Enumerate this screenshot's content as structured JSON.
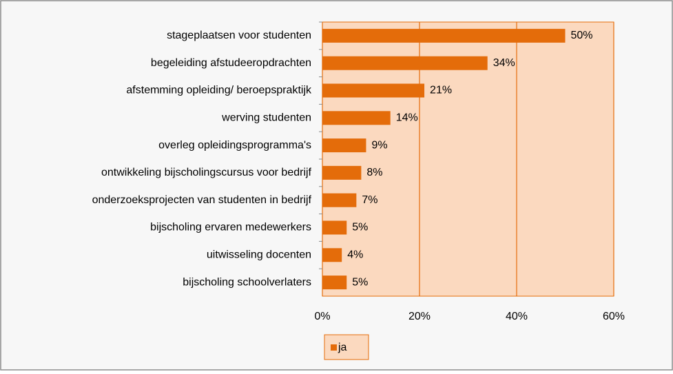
{
  "chart_data": {
    "type": "bar",
    "orientation": "horizontal",
    "categories": [
      "stageplaatsen voor studenten",
      "begeleiding afstudeeropdrachten",
      "afstemming opleiding/ beroepspraktijk",
      "werving studenten",
      "overleg opleidingsprogramma's",
      "ontwikkeling bijscholingscursus voor bedrijf",
      "onderzoeksprojecten van studenten in bedrijf",
      "bijscholing ervaren medewerkers",
      "uitwisseling docenten",
      "bijscholing schoolverlaters"
    ],
    "series": [
      {
        "name": "ja",
        "color": "#e46c0a",
        "values": [
          50,
          34,
          21,
          14,
          9,
          8,
          7,
          5,
          4,
          5
        ],
        "value_labels": [
          "50%",
          "34%",
          "21%",
          "14%",
          "9%",
          "8%",
          "7%",
          "5%",
          "4%",
          "5%"
        ]
      }
    ],
    "xlim": [
      0,
      60
    ],
    "xticks": [
      {
        "value": 0,
        "label": "0%"
      },
      {
        "value": 20,
        "label": "20%"
      },
      {
        "value": 40,
        "label": "40%"
      },
      {
        "value": 60,
        "label": "60%"
      }
    ],
    "grid": true,
    "legend": "bottom"
  }
}
